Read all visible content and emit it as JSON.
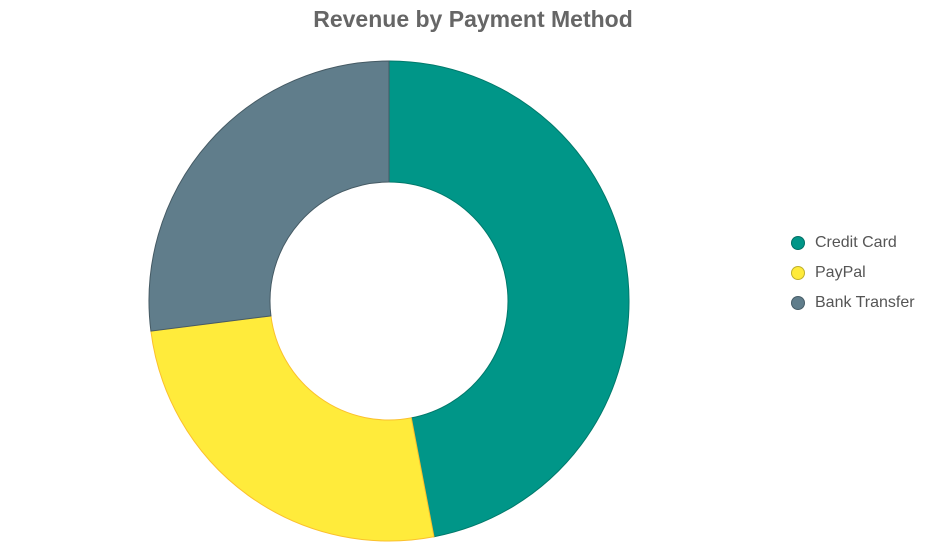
{
  "chart_data": {
    "type": "pie",
    "title": "Revenue by Payment Method",
    "donut": true,
    "categories": [
      "Credit Card",
      "PayPal",
      "Bank Transfer"
    ],
    "values": [
      47,
      26,
      27
    ],
    "colors": [
      "#009688",
      "#ffeb3b",
      "#607d8b"
    ],
    "legend_position": "right"
  }
}
